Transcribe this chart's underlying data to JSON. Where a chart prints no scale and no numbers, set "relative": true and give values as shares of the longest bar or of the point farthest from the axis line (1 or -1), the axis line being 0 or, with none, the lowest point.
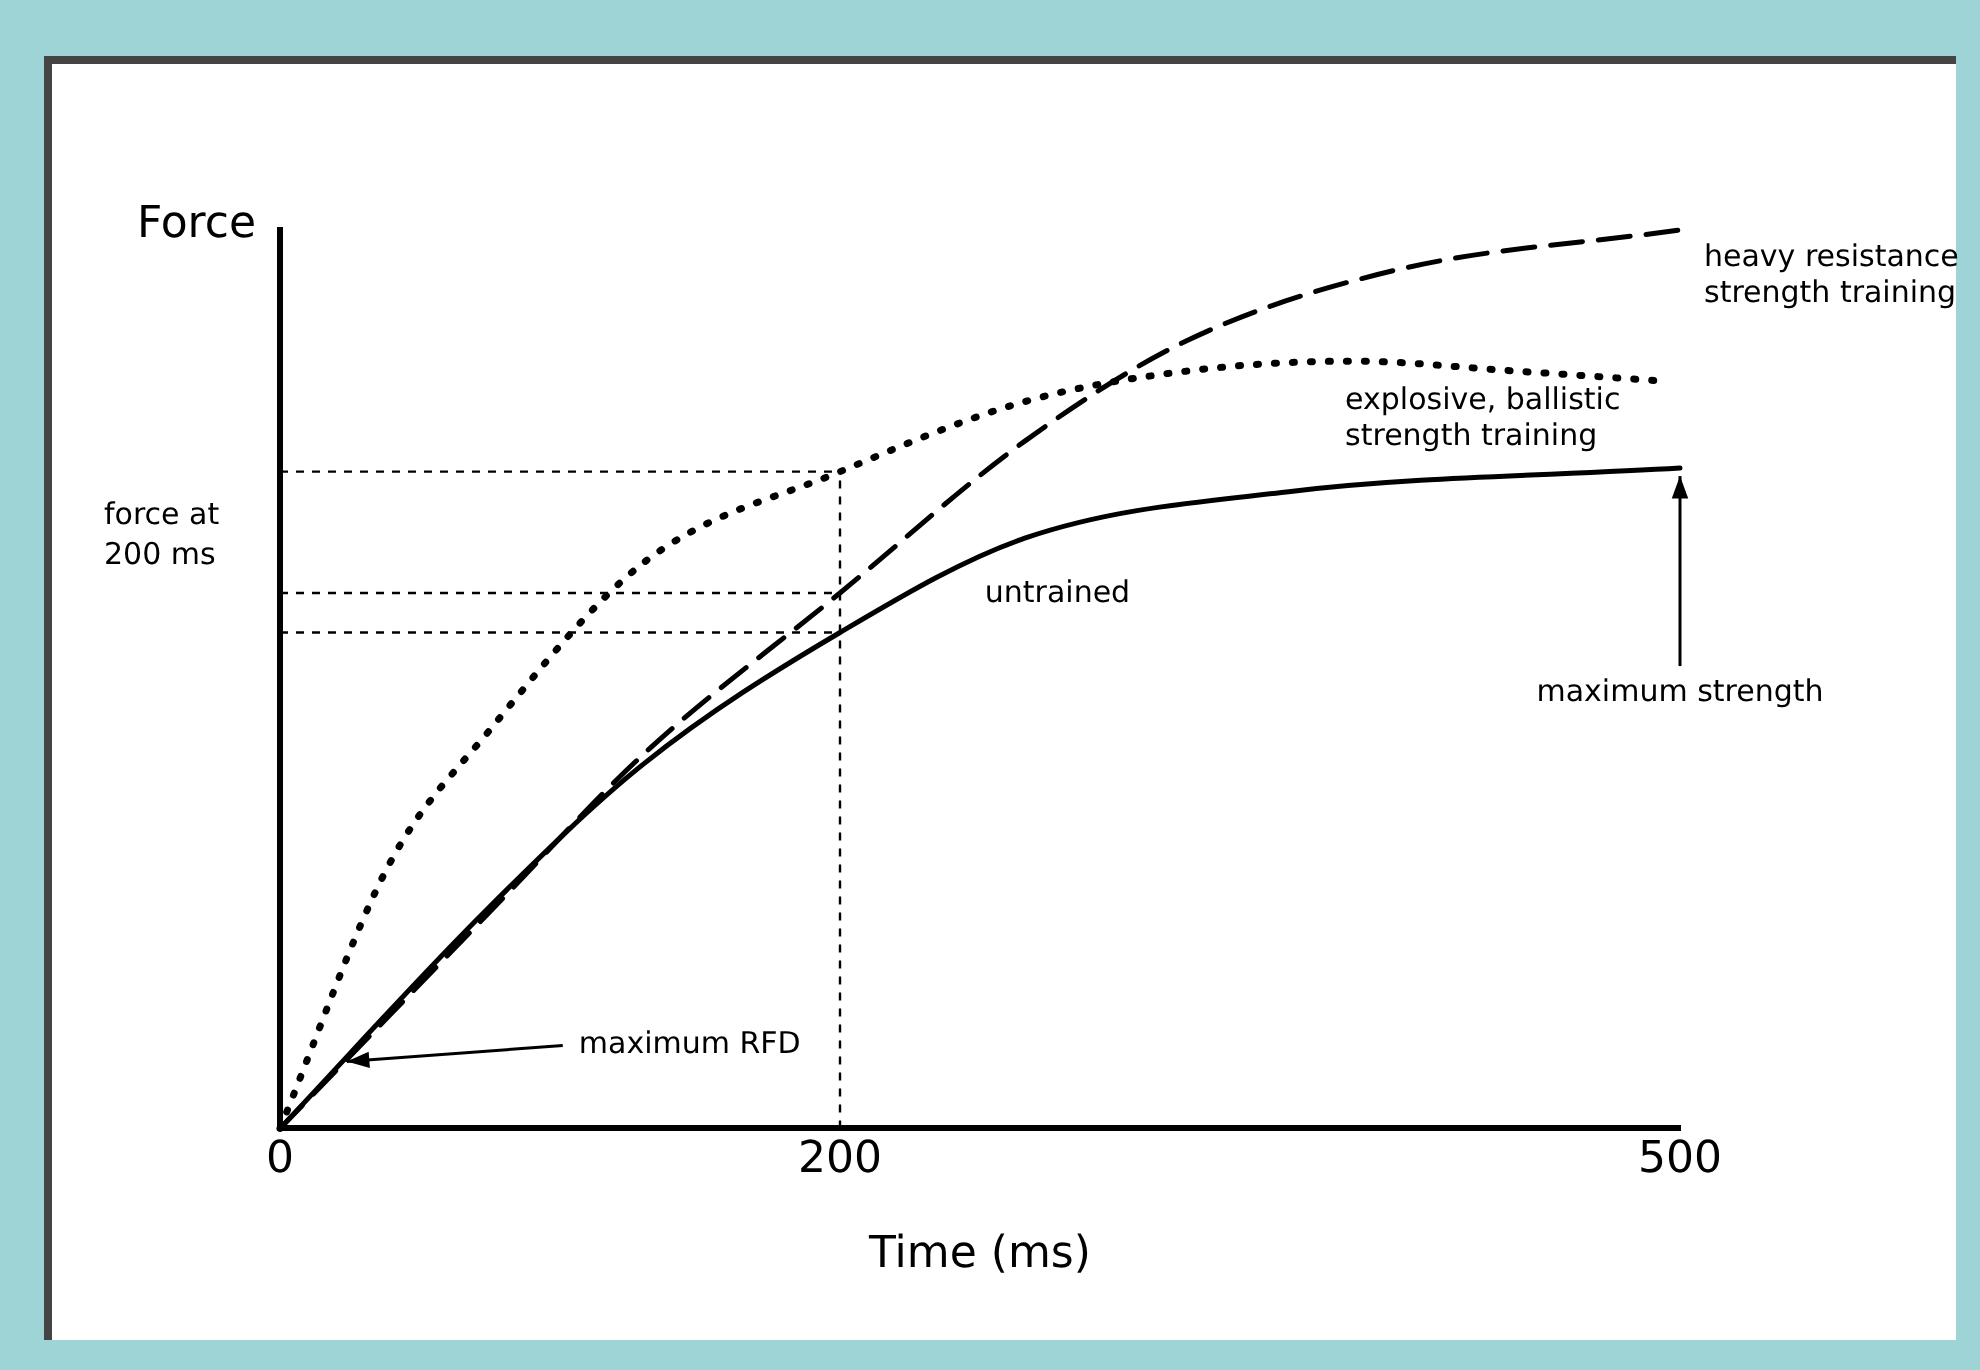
{
  "chart_data": {
    "type": "line",
    "relative": true,
    "xlabel": "Time (ms)",
    "ylabel": "Force",
    "xlim": [
      0,
      500
    ],
    "xticks": [
      0,
      200,
      500
    ],
    "grid": false,
    "legend": false,
    "marker": "none",
    "series": [
      {
        "name": "heavy resistance strength training",
        "color": "#000000",
        "line_style": "dashed",
        "x": [
          0,
          74,
          130,
          200,
          266,
          324,
          398,
          500
        ],
        "values": [
          0,
          0.238,
          0.417,
          0.596,
          0.765,
          0.877,
          0.955,
          1
        ]
      },
      {
        "name": "explosive, ballistic strength training",
        "color": "#000000",
        "line_style": "dotted",
        "x": [
          0,
          39,
          74,
          130,
          200,
          266,
          324,
          383,
          441,
          493
        ],
        "values": [
          0,
          0.294,
          0.44,
          0.63,
          0.731,
          0.809,
          0.843,
          0.854,
          0.843,
          0.832
        ]
      },
      {
        "name": "untrained",
        "color": "#000000",
        "line_style": "solid",
        "x": [
          0,
          74,
          130,
          200,
          266,
          361,
          500
        ],
        "values": [
          0,
          0.244,
          0.406,
          0.552,
          0.657,
          0.709,
          0.735
        ]
      }
    ],
    "ref_lines": [
      {
        "axis": "x",
        "value": 200,
        "line_style": "dashed",
        "color": "#000000"
      },
      {
        "axis": "y",
        "value": 0.731,
        "line_style": "dashed",
        "color": "#000000"
      },
      {
        "axis": "y",
        "value": 0.596,
        "line_style": "dashed",
        "color": "#000000"
      },
      {
        "axis": "y",
        "value": 0.552,
        "line_style": "dashed",
        "color": "#000000"
      }
    ],
    "annotations": [
      "force at 200 ms",
      {
        "text": "maximum RFD",
        "x": 21,
        "y": 0.07
      },
      {
        "text": "maximum strength",
        "x": 500,
        "y": 0.735
      }
    ]
  }
}
